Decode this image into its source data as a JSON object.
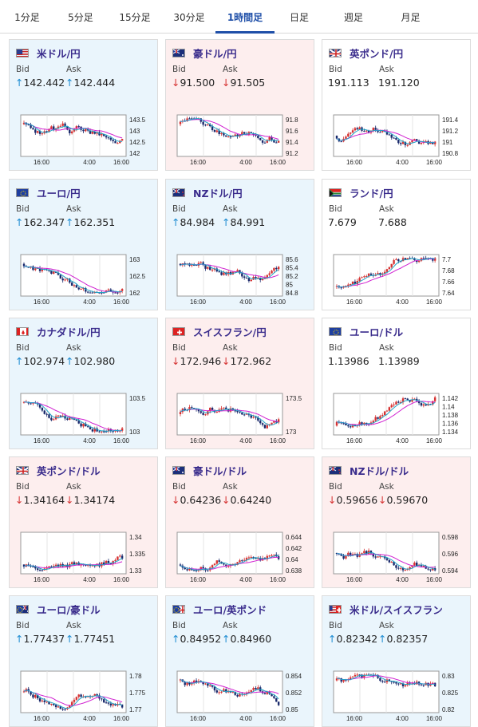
{
  "tabs": [
    "1分足",
    "5分足",
    "15分足",
    "30分足",
    "1時間足",
    "日足",
    "週足",
    "月足"
  ],
  "active_tab": "1時間足",
  "labels": {
    "bid": "Bid",
    "ask": "Ask"
  },
  "colors": {
    "up": "#1e8cd2",
    "down": "#d63232",
    "accent": "#1f4fa8",
    "pair": "#3a2c8c",
    "ma1": "#d020d0",
    "ma2": "#21a3c6"
  },
  "cards": [
    {
      "pair": "米ドル/円",
      "flag": "us",
      "bg": "blue",
      "bid_dir": "up",
      "bid": "142.442",
      "ask_dir": "up",
      "ask": "142.444",
      "ylabels": [
        "143.5",
        "143",
        "142.5",
        "142"
      ],
      "xlabels": [
        "16:00",
        "4:00",
        "16:00"
      ],
      "trend": "down"
    },
    {
      "pair": "豪ドル/円",
      "flag": "au",
      "bg": "pink",
      "bid_dir": "down",
      "bid": "91.500",
      "ask_dir": "down",
      "ask": "91.505",
      "ylabels": [
        "91.8",
        "91.6",
        "91.4",
        "91.2"
      ],
      "xlabels": [
        "16:00",
        "4:00",
        "16:00"
      ],
      "trend": "down"
    },
    {
      "pair": "英ポンド/円",
      "flag": "uk",
      "bg": "white",
      "bid_dir": "none",
      "bid": "191.113",
      "ask_dir": "none",
      "ask": "191.120",
      "ylabels": [
        "191.4",
        "191.2",
        "191",
        "190.8"
      ],
      "xlabels": [
        "16:00",
        "4:00",
        "16:00"
      ],
      "trend": "flat"
    },
    {
      "pair": "ユーロ/円",
      "flag": "eu",
      "bg": "blue",
      "bid_dir": "up",
      "bid": "162.347",
      "ask_dir": "up",
      "ask": "162.351",
      "ylabels": [
        "163",
        "162.5",
        "162"
      ],
      "xlabels": [
        "16:00",
        "4:00",
        "16:00"
      ],
      "trend": "down"
    },
    {
      "pair": "NZドル/円",
      "flag": "nz",
      "bg": "blue",
      "bid_dir": "up",
      "bid": "84.984",
      "ask_dir": "up",
      "ask": "84.991",
      "ylabels": [
        "85.6",
        "85.4",
        "85.2",
        "85",
        "84.8"
      ],
      "xlabels": [
        "16:00",
        "4:00",
        "16:00"
      ],
      "trend": "down"
    },
    {
      "pair": "ランド/円",
      "flag": "za",
      "bg": "white",
      "bid_dir": "none",
      "bid": "7.679",
      "ask_dir": "none",
      "ask": "7.688",
      "ylabels": [
        "7.7",
        "7.68",
        "7.66",
        "7.64"
      ],
      "xlabels": [
        "16:00",
        "4:00",
        "16:00"
      ],
      "trend": "up"
    },
    {
      "pair": "カナダドル/円",
      "flag": "ca",
      "bg": "blue",
      "bid_dir": "up",
      "bid": "102.974",
      "ask_dir": "up",
      "ask": "102.980",
      "ylabels": [
        "103.5",
        "103"
      ],
      "xlabels": [
        "16:00",
        "4:00",
        "16:00"
      ],
      "trend": "down"
    },
    {
      "pair": "スイスフラン/円",
      "flag": "ch",
      "bg": "pink",
      "bid_dir": "down",
      "bid": "172.946",
      "ask_dir": "down",
      "ask": "172.962",
      "ylabels": [
        "173.5",
        "173"
      ],
      "xlabels": [
        "16:00",
        "4:00",
        "16:00"
      ],
      "trend": "flat"
    },
    {
      "pair": "ユーロ/ドル",
      "flag": "eu",
      "bg": "white",
      "bid_dir": "none",
      "bid": "1.13986",
      "ask_dir": "none",
      "ask": "1.13989",
      "ylabels": [
        "1.142",
        "1.14",
        "1.138",
        "1.136",
        "1.134"
      ],
      "xlabels": [
        "16:00",
        "4:00",
        "16:00"
      ],
      "trend": "up"
    },
    {
      "pair": "英ポンド/ドル",
      "flag": "uk",
      "bg": "pink",
      "bid_dir": "down",
      "bid": "1.34164",
      "ask_dir": "down",
      "ask": "1.34174",
      "ylabels": [
        "1.34",
        "1.335",
        "1.33"
      ],
      "xlabels": [
        "16:00",
        "4:00",
        "16:00"
      ],
      "trend": "up"
    },
    {
      "pair": "豪ドル/ドル",
      "flag": "au",
      "bg": "pink",
      "bid_dir": "down",
      "bid": "0.64236",
      "ask_dir": "down",
      "ask": "0.64240",
      "ylabels": [
        "0.644",
        "0.642",
        "0.64",
        "0.638"
      ],
      "xlabels": [
        "16:00",
        "4:00",
        "16:00"
      ],
      "trend": "up"
    },
    {
      "pair": "NZドル/ドル",
      "flag": "nz",
      "bg": "pink",
      "bid_dir": "down",
      "bid": "0.59656",
      "ask_dir": "down",
      "ask": "0.59670",
      "ylabels": [
        "0.598",
        "0.596",
        "0.594"
      ],
      "xlabels": [
        "16:00",
        "4:00",
        "16:00"
      ],
      "trend": "flat"
    },
    {
      "pair": "ユーロ/豪ドル",
      "flag": "eu-au",
      "bg": "blue",
      "bid_dir": "up",
      "bid": "1.77437",
      "ask_dir": "up",
      "ask": "1.77451",
      "ylabels": [
        "1.78",
        "1.775",
        "1.77"
      ],
      "xlabels": [
        "16:00",
        "4:00",
        "16:00"
      ],
      "trend": "flat"
    },
    {
      "pair": "ユーロ/英ポンド",
      "flag": "eu-uk",
      "bg": "blue",
      "bid_dir": "up",
      "bid": "0.84952",
      "ask_dir": "up",
      "ask": "0.84960",
      "ylabels": [
        "0.854",
        "0.852",
        "0.85"
      ],
      "xlabels": [
        "16:00",
        "4:00",
        "16:00"
      ],
      "trend": "down"
    },
    {
      "pair": "米ドル/スイスフラン",
      "flag": "us-ch",
      "bg": "blue",
      "bid_dir": "up",
      "bid": "0.82342",
      "ask_dir": "up",
      "ask": "0.82357",
      "ylabels": [
        "0.83",
        "0.825",
        "0.82"
      ],
      "xlabels": [
        "16:00",
        "4:00",
        "16:00"
      ],
      "trend": "down"
    }
  ]
}
